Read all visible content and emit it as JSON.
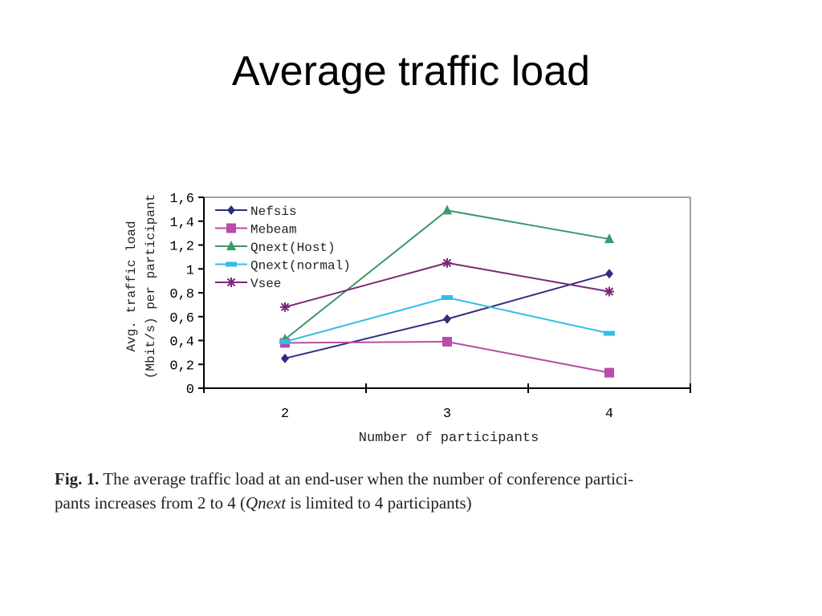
{
  "slide": {
    "title": "Average traffic load"
  },
  "caption": {
    "label": "Fig. 1.",
    "line1_text": " The average traffic load at an end-user when the number of conference partici-",
    "line2_pre": "pants increases from 2 to 4 (",
    "line2_em": "Qnext",
    "line2_post": " is limited to 4 participants)"
  },
  "colors": {
    "Nefsis": "#2e2e7e",
    "Mebeam": "#b84ca6",
    "Qnext(Host)": "#3a9a6a",
    "Qnext(normal)": "#33bde8",
    "Vsee": "#7a2878",
    "axis": "#000000",
    "frame": "#a0a0a0"
  },
  "chart_data": {
    "type": "line",
    "xlabel": "Number of participants",
    "ylabel_line1": "Avg. traffic load",
    "ylabel_line2": "(Mbit/s) per participant",
    "categories": [
      "2",
      "3",
      "4"
    ],
    "ylim": [
      0,
      1.6
    ],
    "yticks": [
      "0",
      "0,2",
      "0,4",
      "0,6",
      "0,8",
      "1",
      "1,2",
      "1,4",
      "1,6"
    ],
    "legend_position": "top-left",
    "grid": false,
    "series": [
      {
        "name": "Nefsis",
        "marker": "diamond",
        "values": [
          0.25,
          0.58,
          0.96
        ]
      },
      {
        "name": "Mebeam",
        "marker": "square",
        "values": [
          0.38,
          0.39,
          0.13
        ]
      },
      {
        "name": "Qnext(Host)",
        "marker": "triangle",
        "values": [
          0.41,
          1.49,
          1.25
        ]
      },
      {
        "name": "Qnext(normal)",
        "marker": "dash",
        "values": [
          0.39,
          0.76,
          0.46
        ]
      },
      {
        "name": "Vsee",
        "marker": "star",
        "values": [
          0.68,
          1.05,
          0.81
        ]
      }
    ]
  }
}
